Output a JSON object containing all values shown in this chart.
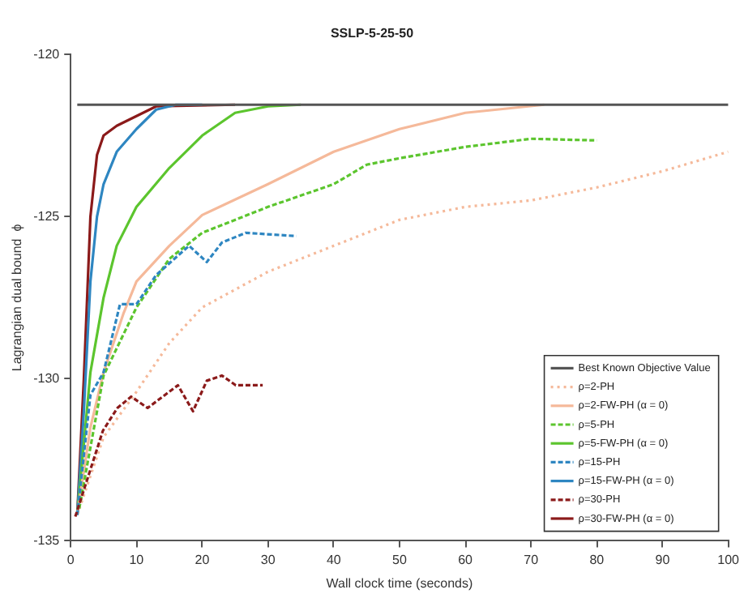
{
  "chart_data": {
    "type": "line",
    "title": "SSLP-5-25-50",
    "xlabel": "Wall clock time (seconds)",
    "ylabel": "Lagrangian dual bound  ϕ",
    "xlim": [
      0,
      100
    ],
    "xticks": [
      0,
      10,
      20,
      30,
      40,
      50,
      60,
      70,
      80,
      90,
      100
    ],
    "ylim": [
      -135,
      -120
    ],
    "yticks": [
      -135,
      -130,
      -125,
      -120
    ],
    "grid": false,
    "legend": "bottom right",
    "marker": "none",
    "series": [
      {
        "name": "Best Known Objective Value",
        "color": "#555555",
        "line_style": "solid",
        "x": [
          1,
          100
        ],
        "values": [
          -121.55,
          -121.55
        ]
      },
      {
        "name": "ρ=2-PH",
        "color": "#f5b99a",
        "line_style": "dotted",
        "x": [
          1,
          5,
          10,
          15,
          20,
          30,
          40,
          50,
          60,
          70,
          80,
          90,
          100
        ],
        "values": [
          -134.2,
          -131.8,
          -130.4,
          -128.9,
          -127.8,
          -126.7,
          -125.9,
          -125.1,
          -124.7,
          -124.5,
          -124.1,
          -123.6,
          -123.0
        ]
      },
      {
        "name": "ρ=2-FW-PH (α = 0)",
        "color": "#f5b99a",
        "line_style": "solid",
        "x": [
          1,
          3,
          5,
          8,
          10,
          15,
          20,
          30,
          40,
          50,
          60,
          72
        ],
        "values": [
          -134.2,
          -131.5,
          -129.8,
          -128.0,
          -127.0,
          -125.9,
          -124.95,
          -124.0,
          -123.0,
          -122.3,
          -121.8,
          -121.55
        ]
      },
      {
        "name": "ρ=5-PH",
        "color": "#5cc52e",
        "line_style": "dashed",
        "x": [
          1.3,
          5,
          10,
          15,
          20,
          30,
          40,
          45,
          50,
          60,
          70,
          80
        ],
        "values": [
          -134.0,
          -129.9,
          -127.8,
          -126.3,
          -125.5,
          -124.7,
          -124.0,
          -123.4,
          -123.2,
          -122.85,
          -122.6,
          -122.65
        ]
      },
      {
        "name": "ρ=5-FW-PH (α = 0)",
        "color": "#5cc52e",
        "line_style": "solid",
        "x": [
          1,
          3,
          5,
          7,
          10,
          15,
          20,
          25,
          30,
          35
        ],
        "values": [
          -134.2,
          -129.8,
          -127.5,
          -125.9,
          -124.7,
          -123.5,
          -122.5,
          -121.8,
          -121.6,
          -121.55
        ]
      },
      {
        "name": "ρ=15-PH",
        "color": "#2e86c1",
        "line_style": "dashed",
        "x": [
          1,
          3,
          5,
          7.5,
          10,
          13,
          18,
          20.7,
          23,
          26.6,
          34.3
        ],
        "values": [
          -134.2,
          -130.5,
          -129.8,
          -127.7,
          -127.7,
          -126.8,
          -125.9,
          -126.4,
          -125.8,
          -125.5,
          -125.6
        ]
      },
      {
        "name": "ρ=15-FW-PH (α = 0)",
        "color": "#2e86c1",
        "line_style": "solid",
        "x": [
          1,
          2,
          3,
          4,
          5,
          7,
          10,
          13,
          16,
          20
        ],
        "values": [
          -134.2,
          -131.0,
          -127.0,
          -125.0,
          -124.0,
          -123.0,
          -122.3,
          -121.7,
          -121.55,
          -121.55
        ]
      },
      {
        "name": "ρ=30-PH",
        "color": "#8b1a1a",
        "line_style": "dashed",
        "x": [
          0.7,
          4.9,
          7.1,
          9.2,
          11.7,
          16.3,
          18.6,
          20.7,
          23,
          25.1,
          29.2
        ],
        "values": [
          -134.25,
          -131.6,
          -130.9,
          -130.55,
          -130.9,
          -130.2,
          -131.0,
          -130.06,
          -129.9,
          -130.2,
          -130.2
        ]
      },
      {
        "name": "ρ=30-FW-PH (α = 0)",
        "color": "#8b1a1a",
        "line_style": "solid",
        "x": [
          1,
          2,
          3,
          4,
          5,
          7,
          9,
          13,
          25
        ],
        "values": [
          -134.2,
          -130.0,
          -125.0,
          -123.1,
          -122.5,
          -122.2,
          -122.0,
          -121.6,
          -121.55
        ]
      }
    ]
  }
}
